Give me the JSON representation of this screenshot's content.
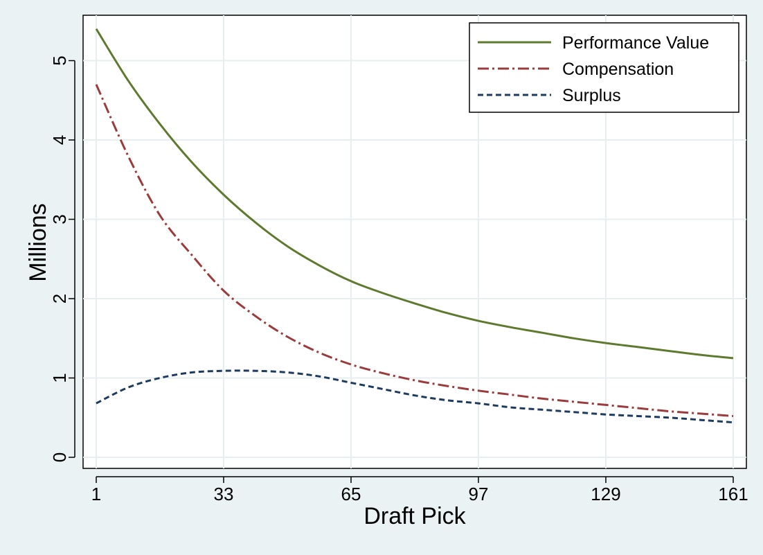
{
  "chart_data": {
    "type": "line",
    "title": "",
    "xlabel": "Draft Pick",
    "ylabel": "Millions",
    "x_ticks": [
      1,
      33,
      65,
      97,
      129,
      161
    ],
    "y_ticks": [
      0,
      1,
      2,
      3,
      4,
      5
    ],
    "xlim": [
      1,
      161
    ],
    "ylim": [
      0,
      5.5
    ],
    "grid": true,
    "legend_position": "top-right",
    "x": [
      1,
      9,
      17,
      25,
      33,
      41,
      49,
      57,
      65,
      73,
      81,
      89,
      97,
      105,
      113,
      121,
      129,
      137,
      145,
      153,
      161
    ],
    "series": [
      {
        "name": "Performance Value",
        "color": "#5e7a2e",
        "style": "solid",
        "values": [
          5.4,
          4.75,
          4.2,
          3.72,
          3.31,
          2.96,
          2.66,
          2.42,
          2.22,
          2.07,
          1.94,
          1.82,
          1.72,
          1.64,
          1.57,
          1.5,
          1.44,
          1.39,
          1.34,
          1.29,
          1.25
        ]
      },
      {
        "name": "Compensation",
        "color": "#9b3b3b",
        "style": "dashdot",
        "values": [
          4.7,
          3.8,
          3.05,
          2.55,
          2.1,
          1.78,
          1.52,
          1.32,
          1.17,
          1.06,
          0.97,
          0.9,
          0.84,
          0.79,
          0.74,
          0.7,
          0.66,
          0.62,
          0.58,
          0.55,
          0.52
        ]
      },
      {
        "name": "Surplus",
        "color": "#1d3a5f",
        "style": "dashed",
        "values": [
          0.68,
          0.88,
          1.0,
          1.07,
          1.09,
          1.09,
          1.07,
          1.02,
          0.94,
          0.86,
          0.78,
          0.72,
          0.68,
          0.63,
          0.6,
          0.57,
          0.54,
          0.52,
          0.5,
          0.47,
          0.44
        ]
      }
    ]
  }
}
